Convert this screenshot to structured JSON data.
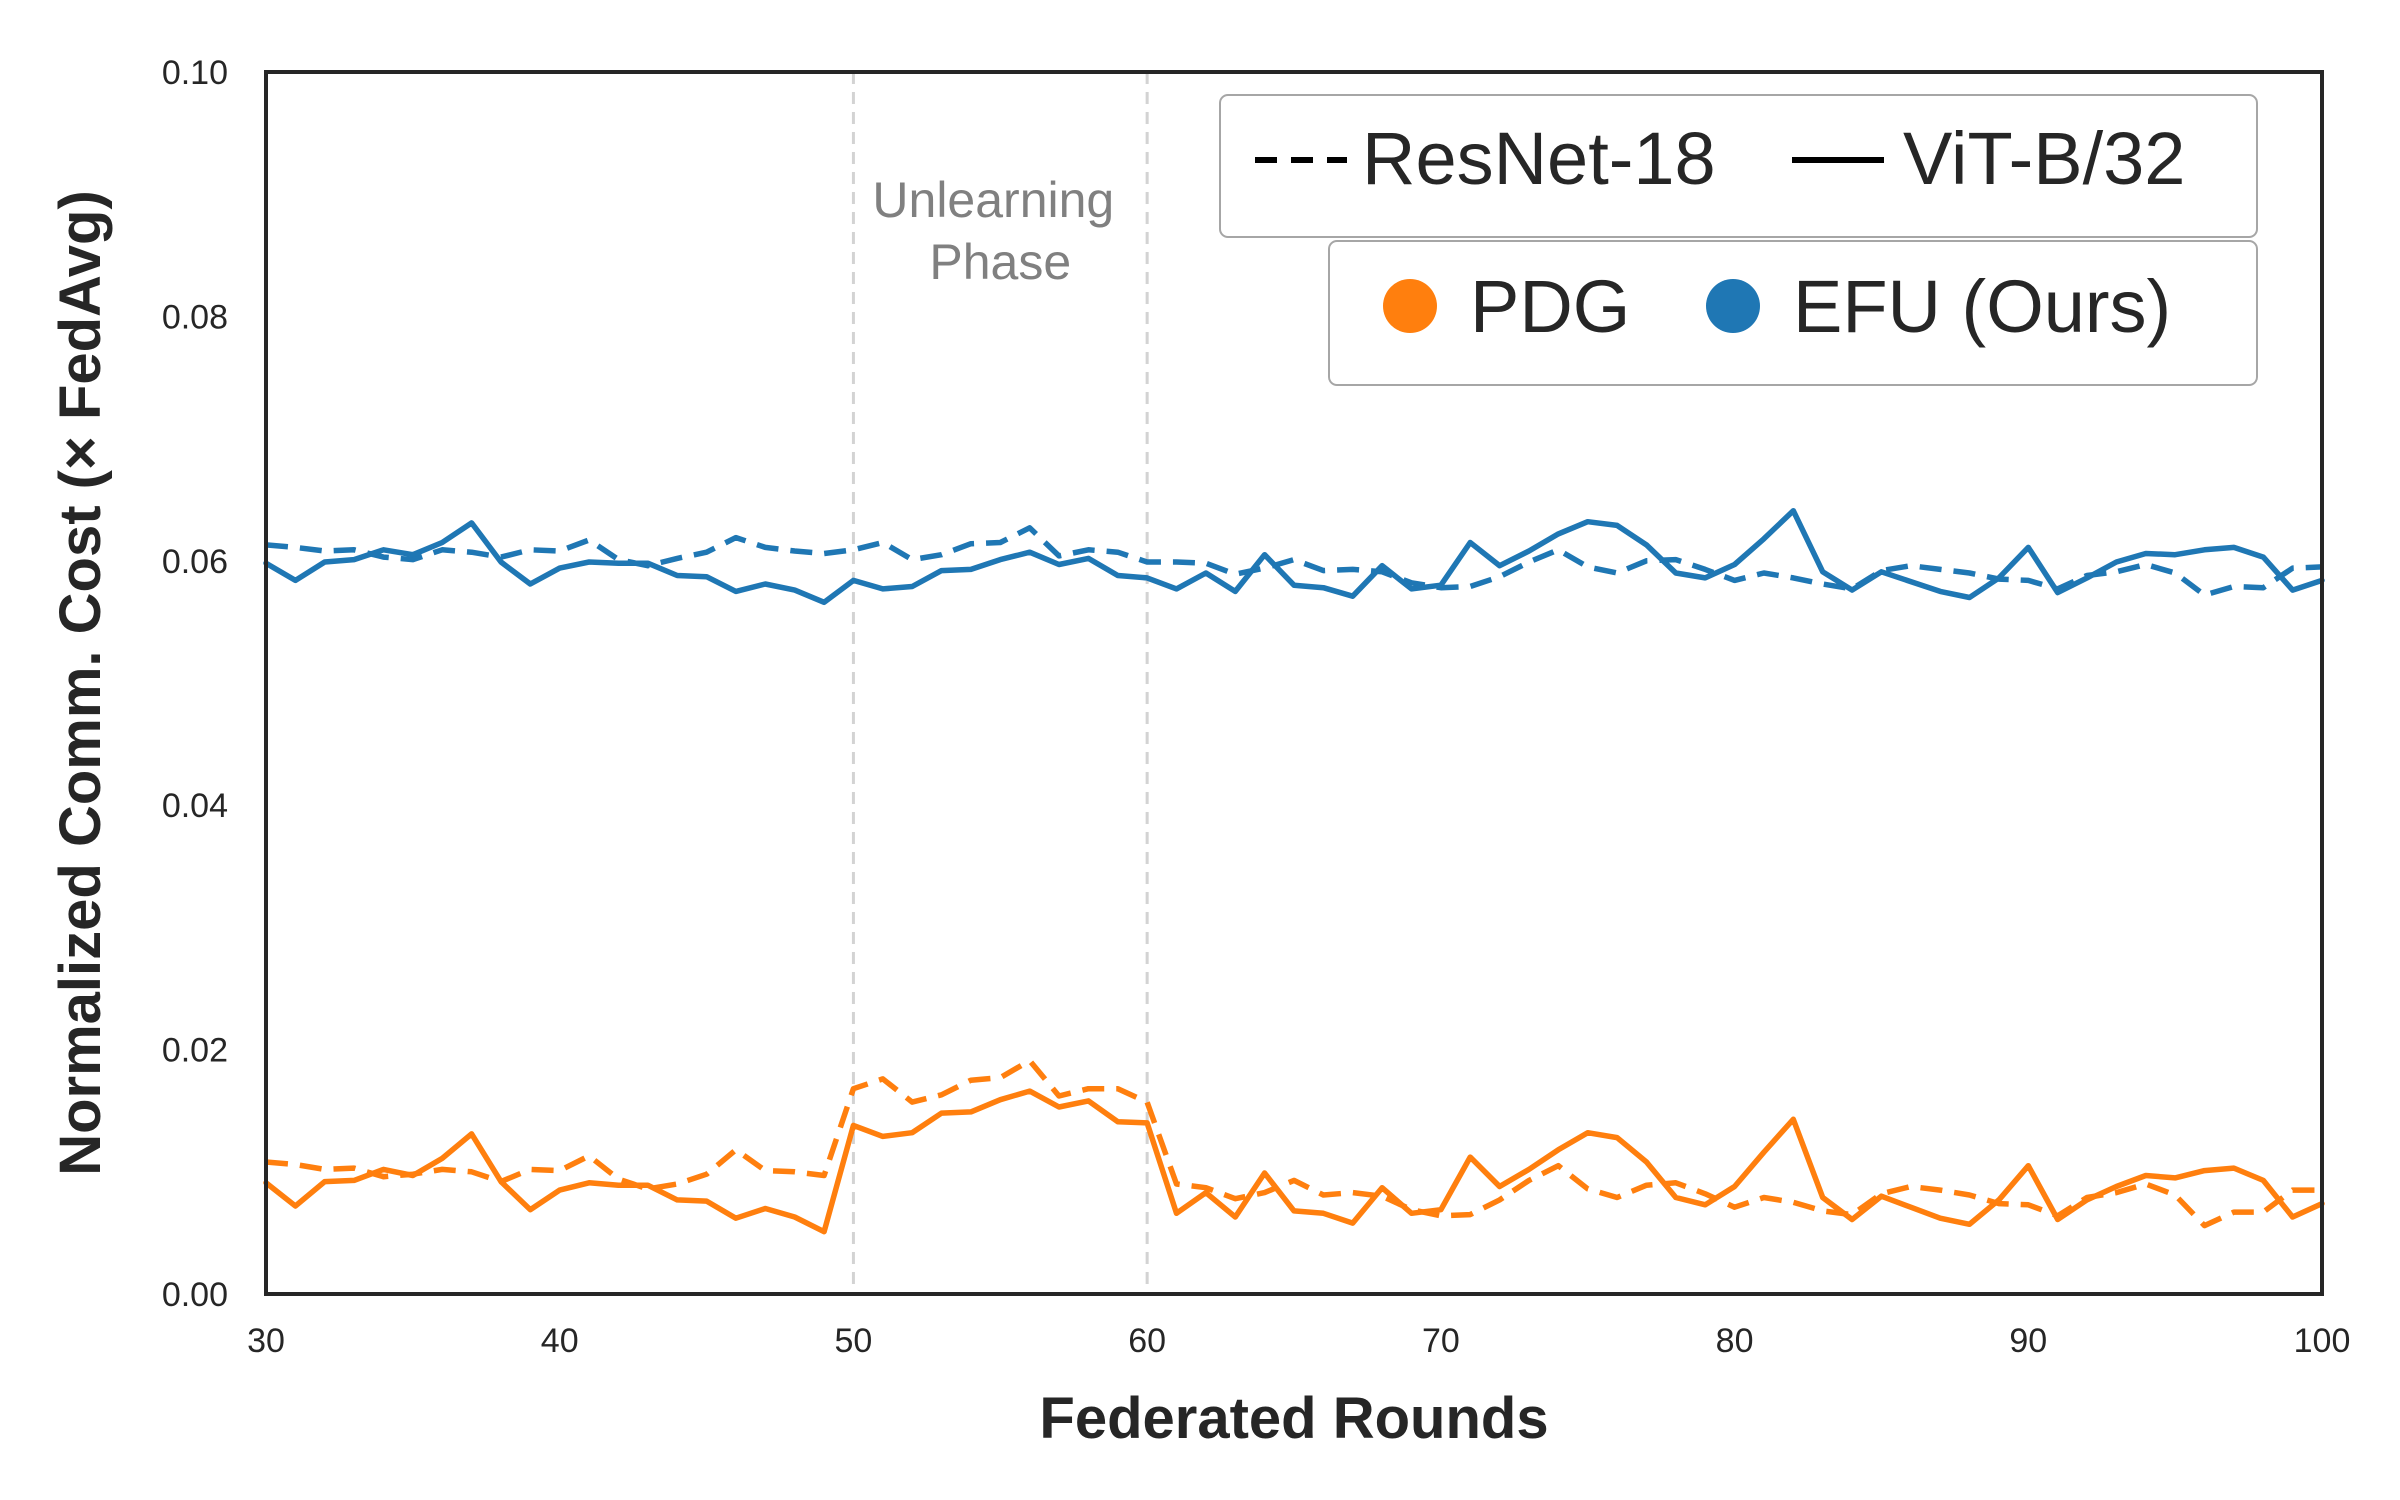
{
  "chart_data": {
    "type": "line",
    "title": "",
    "xlabel": "Federated Rounds",
    "ylabel": "Normalized Comm. Cost (× FedAvg)",
    "xlim": [
      30,
      100
    ],
    "ylim": [
      0.0,
      0.1
    ],
    "xticks": [
      30,
      40,
      50,
      60,
      70,
      80,
      90,
      100
    ],
    "xtick_labels": [
      "30",
      "40",
      "50",
      "60",
      "70",
      "80",
      "90",
      "100"
    ],
    "yticks": [
      0.0,
      0.02,
      0.04,
      0.06,
      0.08,
      0.1
    ],
    "ytick_labels": [
      "0.00",
      "0.02",
      "0.04",
      "0.06",
      "0.08",
      "0.10"
    ],
    "grid": false,
    "vlines": [
      50,
      60
    ],
    "annotation": {
      "lines": [
        "Unlearning",
        "Phase"
      ],
      "x": 55,
      "y": 0.087
    },
    "legend": {
      "placement": "top-right",
      "styles": [
        {
          "label": "ResNet-18",
          "dash": "dashed"
        },
        {
          "label": "ViT-B/32",
          "dash": "solid"
        }
      ],
      "methods": [
        {
          "label": "PDG",
          "color": "#ff7f0e"
        },
        {
          "label": "EFU (Ours)",
          "color": "#1f77b4"
        }
      ]
    },
    "x": [
      30,
      31,
      32,
      33,
      34,
      35,
      36,
      37,
      38,
      39,
      40,
      41,
      42,
      43,
      44,
      45,
      46,
      47,
      48,
      49,
      50,
      51,
      52,
      53,
      54,
      55,
      56,
      57,
      58,
      59,
      60,
      61,
      62,
      63,
      64,
      65,
      66,
      67,
      68,
      69,
      70,
      71,
      72,
      73,
      74,
      75,
      76,
      77,
      78,
      79,
      80,
      81,
      82,
      83,
      84,
      85,
      86,
      87,
      88,
      89,
      90,
      91,
      92,
      93,
      94,
      95,
      96,
      97,
      98,
      99,
      100
    ],
    "series": [
      {
        "name": "EFU (Ours) — ResNet-18",
        "color": "#1f77b4",
        "dash": "dashed",
        "values": [
          0.0613,
          0.0611,
          0.0608,
          0.0609,
          0.0603,
          0.0601,
          0.0609,
          0.0607,
          0.0603,
          0.0609,
          0.0608,
          0.0617,
          0.0601,
          0.0596,
          0.0602,
          0.0607,
          0.0619,
          0.0611,
          0.0608,
          0.0606,
          0.0609,
          0.0615,
          0.0601,
          0.0605,
          0.0614,
          0.0615,
          0.0627,
          0.0604,
          0.0609,
          0.0607,
          0.0599,
          0.0599,
          0.0598,
          0.0589,
          0.0594,
          0.0601,
          0.0592,
          0.0593,
          0.0591,
          0.0582,
          0.0578,
          0.0579,
          0.0587,
          0.0599,
          0.0609,
          0.0595,
          0.059,
          0.06,
          0.0601,
          0.0593,
          0.0584,
          0.059,
          0.0586,
          0.0581,
          0.0577,
          0.0592,
          0.0596,
          0.0593,
          0.059,
          0.0585,
          0.0584,
          0.0577,
          0.0588,
          0.0591,
          0.0597,
          0.059,
          0.0572,
          0.0579,
          0.0578,
          0.0594,
          0.0595
        ]
      },
      {
        "name": "EFU (Ours) — ViT-B/32",
        "color": "#1f77b4",
        "dash": "solid",
        "values": [
          0.0598,
          0.0584,
          0.0599,
          0.0601,
          0.0609,
          0.0605,
          0.0615,
          0.0631,
          0.0599,
          0.0581,
          0.0594,
          0.0599,
          0.0598,
          0.0598,
          0.0588,
          0.0587,
          0.0575,
          0.0581,
          0.0576,
          0.0566,
          0.0584,
          0.0577,
          0.0579,
          0.0592,
          0.0593,
          0.0601,
          0.0607,
          0.0597,
          0.0602,
          0.0588,
          0.0586,
          0.0577,
          0.059,
          0.0575,
          0.0605,
          0.058,
          0.0578,
          0.0571,
          0.0596,
          0.0577,
          0.058,
          0.0615,
          0.0596,
          0.0608,
          0.0622,
          0.0632,
          0.0629,
          0.0613,
          0.059,
          0.0586,
          0.0597,
          0.0618,
          0.0641,
          0.0591,
          0.0576,
          0.0591,
          0.0583,
          0.0575,
          0.057,
          0.0586,
          0.0611,
          0.0574,
          0.0586,
          0.0599,
          0.0606,
          0.0605,
          0.0609,
          0.0611,
          0.0603,
          0.0576,
          0.0584
        ]
      },
      {
        "name": "PDG — ResNet-18",
        "color": "#ff7f0e",
        "dash": "dashed",
        "values": [
          0.0108,
          0.0106,
          0.0102,
          0.0103,
          0.0096,
          0.0098,
          0.0102,
          0.01,
          0.0092,
          0.0102,
          0.0101,
          0.0113,
          0.0094,
          0.0086,
          0.009,
          0.0098,
          0.0118,
          0.0101,
          0.01,
          0.0097,
          0.0168,
          0.0176,
          0.0157,
          0.0163,
          0.0175,
          0.0177,
          0.0191,
          0.0162,
          0.0168,
          0.0168,
          0.0157,
          0.009,
          0.0087,
          0.0078,
          0.0083,
          0.0093,
          0.0081,
          0.0083,
          0.008,
          0.0069,
          0.0064,
          0.0065,
          0.0077,
          0.0093,
          0.0105,
          0.0086,
          0.0079,
          0.0089,
          0.0091,
          0.0082,
          0.0071,
          0.0079,
          0.0075,
          0.0068,
          0.0065,
          0.0082,
          0.0088,
          0.0085,
          0.0081,
          0.0074,
          0.0073,
          0.0064,
          0.0079,
          0.0083,
          0.009,
          0.0081,
          0.0056,
          0.0067,
          0.0067,
          0.0085,
          0.0085
        ]
      },
      {
        "name": "PDG — ViT-B/32",
        "color": "#ff7f0e",
        "dash": "solid",
        "values": [
          0.0091,
          0.0072,
          0.0092,
          0.0093,
          0.0102,
          0.0097,
          0.0111,
          0.0131,
          0.0092,
          0.0069,
          0.0085,
          0.0091,
          0.0089,
          0.0089,
          0.0077,
          0.0076,
          0.0062,
          0.007,
          0.0063,
          0.0051,
          0.0138,
          0.0129,
          0.0132,
          0.0148,
          0.0149,
          0.0159,
          0.0166,
          0.0153,
          0.0158,
          0.0141,
          0.014,
          0.0066,
          0.0083,
          0.0063,
          0.0099,
          0.0068,
          0.0066,
          0.0058,
          0.0087,
          0.0066,
          0.0069,
          0.0112,
          0.0088,
          0.0102,
          0.0118,
          0.0132,
          0.0128,
          0.0108,
          0.0079,
          0.0073,
          0.0088,
          0.0116,
          0.0143,
          0.0079,
          0.0061,
          0.008,
          0.0071,
          0.0062,
          0.0057,
          0.0077,
          0.0105,
          0.0061,
          0.0077,
          0.0088,
          0.0097,
          0.0095,
          0.0101,
          0.0103,
          0.0093,
          0.0063,
          0.0074
        ]
      }
    ]
  }
}
